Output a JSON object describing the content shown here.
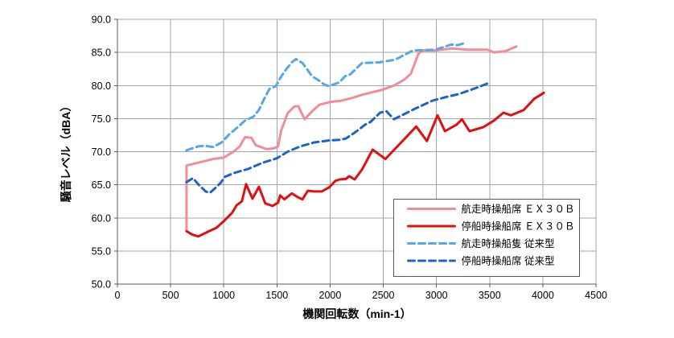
{
  "chart_data": {
    "type": "line",
    "title": "",
    "xlabel": "機関回転数（min-1）",
    "ylabel": "騒音レベル（dBA）",
    "xlim": [
      0,
      4500
    ],
    "ylim": [
      50,
      90
    ],
    "x_ticks": [
      0,
      500,
      1000,
      1500,
      2000,
      2500,
      3000,
      3500,
      4000,
      4500
    ],
    "x_tick_labels": [
      "0",
      "500",
      "1000",
      "1500",
      "2000",
      "2500",
      "3000",
      "3500",
      "4000",
      "4500"
    ],
    "y_ticks": [
      50,
      55,
      60,
      65,
      70,
      75,
      80,
      85,
      90
    ],
    "y_tick_labels": [
      "50.0",
      "55.0",
      "60.0",
      "65.0",
      "70.0",
      "75.0",
      "80.0",
      "85.0",
      "90.0"
    ],
    "grid": true,
    "legend_position": "inside-bottom-right",
    "series": [
      {
        "key": "cruising-ex30b",
        "name": "航走時操船席 ＥＸ３０Ｂ",
        "color": "#F08D97",
        "style": "solid",
        "points": [
          [
            650,
            58.3
          ],
          [
            650,
            67.9
          ],
          [
            700,
            68.1
          ],
          [
            800,
            68.5
          ],
          [
            900,
            68.9
          ],
          [
            1000,
            69.1
          ],
          [
            1100,
            70.1
          ],
          [
            1150,
            70.8
          ],
          [
            1200,
            72.2
          ],
          [
            1260,
            72.1
          ],
          [
            1300,
            71.0
          ],
          [
            1400,
            70.4
          ],
          [
            1470,
            70.5
          ],
          [
            1510,
            70.8
          ],
          [
            1540,
            73.2
          ],
          [
            1600,
            75.8
          ],
          [
            1660,
            76.8
          ],
          [
            1700,
            76.9
          ],
          [
            1760,
            74.9
          ],
          [
            1830,
            76.1
          ],
          [
            1900,
            77.1
          ],
          [
            2000,
            77.5
          ],
          [
            2100,
            77.7
          ],
          [
            2200,
            78.1
          ],
          [
            2300,
            78.6
          ],
          [
            2400,
            79.0
          ],
          [
            2480,
            79.3
          ],
          [
            2600,
            80.0
          ],
          [
            2700,
            80.9
          ],
          [
            2760,
            81.8
          ],
          [
            2830,
            84.8
          ],
          [
            2870,
            85.3
          ],
          [
            3000,
            85.3
          ],
          [
            3140,
            85.6
          ],
          [
            3300,
            85.4
          ],
          [
            3480,
            85.4
          ],
          [
            3540,
            85.0
          ],
          [
            3650,
            85.2
          ],
          [
            3750,
            85.9
          ]
        ]
      },
      {
        "key": "stationary-ex30b",
        "name": "停船時操船席 ＥＸ３０Ｂ",
        "color": "#E01010",
        "style": "solid",
        "points": [
          [
            650,
            58.0
          ],
          [
            700,
            57.5
          ],
          [
            760,
            57.2
          ],
          [
            850,
            57.9
          ],
          [
            930,
            58.5
          ],
          [
            1000,
            59.5
          ],
          [
            1080,
            60.8
          ],
          [
            1120,
            61.9
          ],
          [
            1170,
            62.5
          ],
          [
            1210,
            65.1
          ],
          [
            1270,
            62.9
          ],
          [
            1330,
            64.7
          ],
          [
            1390,
            62.2
          ],
          [
            1460,
            61.8
          ],
          [
            1510,
            62.3
          ],
          [
            1530,
            63.4
          ],
          [
            1570,
            62.8
          ],
          [
            1640,
            63.7
          ],
          [
            1700,
            63.1
          ],
          [
            1740,
            62.8
          ],
          [
            1790,
            64.1
          ],
          [
            1850,
            64.0
          ],
          [
            1920,
            64.0
          ],
          [
            1990,
            64.6
          ],
          [
            2050,
            65.6
          ],
          [
            2090,
            65.8
          ],
          [
            2150,
            65.9
          ],
          [
            2180,
            66.3
          ],
          [
            2230,
            65.8
          ],
          [
            2300,
            67.3
          ],
          [
            2400,
            70.3
          ],
          [
            2460,
            69.6
          ],
          [
            2520,
            68.9
          ],
          [
            2680,
            71.6
          ],
          [
            2810,
            73.8
          ],
          [
            2910,
            71.6
          ],
          [
            3010,
            75.5
          ],
          [
            3080,
            73.1
          ],
          [
            3190,
            74.1
          ],
          [
            3240,
            74.9
          ],
          [
            3310,
            73.1
          ],
          [
            3440,
            73.7
          ],
          [
            3540,
            74.7
          ],
          [
            3630,
            75.9
          ],
          [
            3700,
            75.5
          ],
          [
            3820,
            76.3
          ],
          [
            3920,
            78.0
          ],
          [
            4010,
            78.9
          ]
        ]
      },
      {
        "key": "cruising-conventional",
        "name": "航走時操船隻 従来型",
        "color": "#54A7E8",
        "style": "dashed",
        "points": [
          [
            650,
            70.2
          ],
          [
            700,
            70.5
          ],
          [
            760,
            70.8
          ],
          [
            820,
            70.9
          ],
          [
            900,
            70.7
          ],
          [
            980,
            71.4
          ],
          [
            1050,
            72.6
          ],
          [
            1130,
            73.7
          ],
          [
            1200,
            74.7
          ],
          [
            1280,
            75.3
          ],
          [
            1330,
            76.3
          ],
          [
            1380,
            78.0
          ],
          [
            1430,
            79.5
          ],
          [
            1490,
            79.9
          ],
          [
            1530,
            81.1
          ],
          [
            1580,
            82.3
          ],
          [
            1640,
            83.5
          ],
          [
            1680,
            84.0
          ],
          [
            1740,
            83.4
          ],
          [
            1790,
            82.3
          ],
          [
            1830,
            81.4
          ],
          [
            1890,
            80.8
          ],
          [
            1940,
            80.2
          ],
          [
            1990,
            79.9
          ],
          [
            2040,
            80.2
          ],
          [
            2090,
            80.5
          ],
          [
            2140,
            81.4
          ],
          [
            2190,
            81.7
          ],
          [
            2300,
            83.4
          ],
          [
            2460,
            83.5
          ],
          [
            2610,
            83.9
          ],
          [
            2780,
            85.3
          ],
          [
            2990,
            85.4
          ],
          [
            3140,
            86.2
          ],
          [
            3200,
            86.1
          ],
          [
            3265,
            86.4
          ]
        ]
      },
      {
        "key": "stationary-conventional",
        "name": "停船時操船席 従来型",
        "color": "#1C64C8",
        "style": "dashed",
        "points": [
          [
            650,
            65.4
          ],
          [
            710,
            66.0
          ],
          [
            770,
            64.9
          ],
          [
            830,
            64.0
          ],
          [
            870,
            63.8
          ],
          [
            920,
            64.5
          ],
          [
            970,
            65.3
          ],
          [
            1010,
            66.2
          ],
          [
            1100,
            66.8
          ],
          [
            1230,
            67.4
          ],
          [
            1360,
            68.3
          ],
          [
            1500,
            69.0
          ],
          [
            1600,
            70.0
          ],
          [
            1720,
            70.8
          ],
          [
            1850,
            71.4
          ],
          [
            1990,
            71.7
          ],
          [
            2100,
            71.8
          ],
          [
            2150,
            72.0
          ],
          [
            2250,
            73.1
          ],
          [
            2330,
            74.1
          ],
          [
            2380,
            74.5
          ],
          [
            2470,
            75.9
          ],
          [
            2530,
            76.1
          ],
          [
            2600,
            74.9
          ],
          [
            2700,
            75.7
          ],
          [
            2800,
            76.5
          ],
          [
            2960,
            77.7
          ],
          [
            3100,
            78.3
          ],
          [
            3210,
            78.7
          ],
          [
            3350,
            79.5
          ],
          [
            3480,
            80.3
          ],
          [
            3500,
            80.7
          ]
        ]
      }
    ],
    "legend": [
      "航走時操船席 ＥＸ３０Ｂ",
      "停船時操船席 ＥＸ３０Ｂ",
      "航走時操船隻 従来型",
      "停船時操船席 従来型"
    ]
  },
  "colors": {
    "background": "#FFFFFF",
    "gridline": "#A6A6A6",
    "axis": "#595959",
    "text": "#000000",
    "legend_border": "#595959",
    "pink": "#F08D97",
    "red": "#E01010",
    "light_blue": "#54A7E8",
    "dark_blue": "#1C64C8"
  }
}
